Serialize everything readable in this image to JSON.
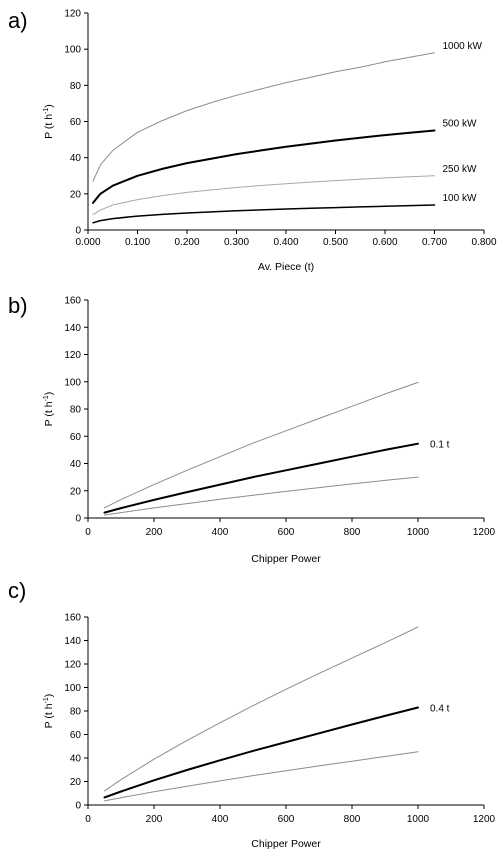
{
  "chart_data": [
    {
      "panel_label": "a)",
      "type": "line",
      "xlabel": "Av. Piece (t)",
      "ylabel": "P (t h",
      "ylabel_sup": "-1",
      "ylabel_end": ")",
      "xlim": [
        0,
        0.8
      ],
      "ylim": [
        0,
        120
      ],
      "xticks": [
        0,
        0.1,
        0.2,
        0.3,
        0.4,
        0.5,
        0.6,
        0.7,
        0.8
      ],
      "xtick_labels": [
        "0.000",
        "0.100",
        "0.200",
        "0.300",
        "0.400",
        "0.500",
        "0.600",
        "0.700",
        "0.800"
      ],
      "yticks": [
        0,
        20,
        40,
        60,
        80,
        100,
        120
      ],
      "ytick_labels": [
        "0",
        "20",
        "40",
        "60",
        "80",
        "100",
        "120"
      ],
      "grid": false,
      "x": [
        0.01,
        0.025,
        0.05,
        0.1,
        0.15,
        0.2,
        0.25,
        0.3,
        0.35,
        0.4,
        0.45,
        0.5,
        0.55,
        0.6,
        0.65,
        0.7
      ],
      "series": [
        {
          "name": "1000 kW",
          "color": "#8c8c8c",
          "width": 1,
          "values": [
            27,
            36,
            44,
            54,
            60.5,
            66,
            70.5,
            74.5,
            78,
            81.5,
            84.5,
            87.5,
            90,
            93,
            95.5,
            98
          ]
        },
        {
          "name": "500 kW",
          "color": "#000000",
          "width": 2,
          "values": [
            15,
            20,
            24.5,
            30,
            33.8,
            37,
            39.5,
            42,
            44,
            46,
            47.8,
            49.5,
            51,
            52.5,
            53.8,
            55
          ]
        },
        {
          "name": "250 kW",
          "color": "#a8a8a8",
          "width": 1,
          "values": [
            8.5,
            11,
            13.8,
            16.8,
            19,
            20.8,
            22.2,
            23.5,
            24.6,
            25.6,
            26.5,
            27.3,
            28.1,
            28.8,
            29.5,
            30
          ]
        },
        {
          "name": "100 kW",
          "color": "#000000",
          "width": 1.5,
          "values": [
            4,
            5.2,
            6.3,
            7.7,
            8.6,
            9.4,
            10,
            10.6,
            11.1,
            11.6,
            12,
            12.4,
            12.8,
            13.1,
            13.5,
            13.8
          ]
        }
      ]
    },
    {
      "panel_label": "b)",
      "type": "line",
      "xlabel": "Chipper Power",
      "ylabel": "P (t h",
      "ylabel_sup": "-1",
      "ylabel_end": ")",
      "xlim": [
        0,
        1200
      ],
      "ylim": [
        0,
        160
      ],
      "xticks": [
        0,
        200,
        400,
        600,
        800,
        1000,
        1200
      ],
      "xtick_labels": [
        "0",
        "200",
        "400",
        "600",
        "800",
        "1000",
        "1200"
      ],
      "yticks": [
        0,
        20,
        40,
        60,
        80,
        100,
        120,
        140,
        160
      ],
      "ytick_labels": [
        "0",
        "20",
        "40",
        "60",
        "80",
        "100",
        "120",
        "140",
        "160"
      ],
      "grid": false,
      "x": [
        50,
        100,
        200,
        300,
        400,
        500,
        600,
        700,
        800,
        900,
        1000
      ],
      "series": [
        {
          "name": "",
          "color": "#8c8c8c",
          "width": 1,
          "values": [
            7.5,
            13.5,
            24.5,
            35,
            45,
            55,
            64,
            73,
            82,
            91,
            99.5
          ]
        },
        {
          "name": "0.1 t",
          "color": "#000000",
          "width": 2,
          "values": [
            4,
            7.3,
            13.3,
            19,
            24.5,
            30,
            35,
            40,
            45,
            50,
            54.5
          ]
        },
        {
          "name": "",
          "color": "#8c8c8c",
          "width": 1,
          "values": [
            2.2,
            4,
            7.4,
            10.6,
            13.7,
            16.7,
            19.5,
            22.3,
            25,
            27.6,
            30
          ]
        }
      ]
    },
    {
      "panel_label": "c)",
      "type": "line",
      "xlabel": "Chipper Power",
      "ylabel": "P (t h",
      "ylabel_sup": "-1",
      "ylabel_end": ")",
      "xlim": [
        0,
        1200
      ],
      "ylim": [
        0,
        160
      ],
      "xticks": [
        0,
        200,
        400,
        600,
        800,
        1000,
        1200
      ],
      "xtick_labels": [
        "0",
        "200",
        "400",
        "600",
        "800",
        "1000",
        "1200"
      ],
      "yticks": [
        0,
        20,
        40,
        60,
        80,
        100,
        120,
        140,
        160
      ],
      "ytick_labels": [
        "0",
        "20",
        "40",
        "60",
        "80",
        "100",
        "120",
        "140",
        "160"
      ],
      "grid": false,
      "x": [
        50,
        100,
        200,
        300,
        400,
        500,
        600,
        700,
        800,
        900,
        1000
      ],
      "series": [
        {
          "name": "",
          "color": "#8c8c8c",
          "width": 1,
          "values": [
            12,
            21.5,
            39,
            55,
            70,
            84.5,
            98.5,
            112,
            125,
            138,
            151.5
          ]
        },
        {
          "name": "0.4 t",
          "color": "#000000",
          "width": 2,
          "values": [
            6.5,
            11.5,
            21,
            29.8,
            38,
            46,
            53.5,
            61,
            68.5,
            75.8,
            83
          ]
        },
        {
          "name": "",
          "color": "#8c8c8c",
          "width": 1,
          "values": [
            3.5,
            6.2,
            11.3,
            16,
            20.5,
            25,
            29.2,
            33.3,
            37.3,
            41.3,
            45.3
          ]
        }
      ]
    }
  ]
}
